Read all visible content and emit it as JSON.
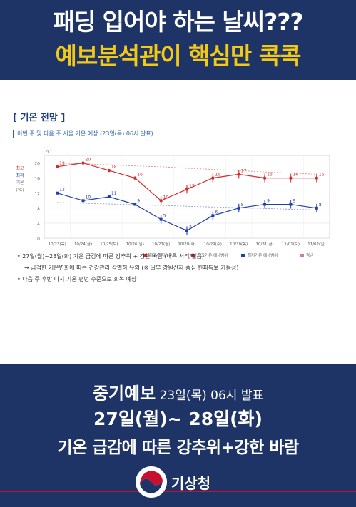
{
  "header": {
    "line1": "패딩 입어야 하는 날씨???",
    "line2": "예보분석관이 핵심만 콕콕"
  },
  "card": {
    "section_title": "[ 기온 전망 ]",
    "subtitle": "이번 주 및 다음 주 서울 기온 예상 (23일(목) 06시 발표)",
    "notes": [
      "• 27일(월)~28일(화) 기온 급감에 따른 강추위 + 강한 바람 (내륙 서리/얼음)",
      "→ 급격한 기온변화에 따른 건강관리 각별히 유의 (※ 일부 강원산지 중심 한파특보 가능성)",
      "• 다음 주 후반 다시 기온 평년 수준으로 회복 예상"
    ]
  },
  "chart_data": {
    "type": "line",
    "unit_label": "°C",
    "left_labels": [
      "최고",
      "최저",
      "기온",
      "(℃)"
    ],
    "yticks": [
      0,
      4,
      8,
      12,
      16,
      20
    ],
    "ylim": [
      0,
      22
    ],
    "categories": [
      "10/23(목)",
      "10/24(금)",
      "10/25(토)",
      "10/26(일)",
      "10/27(월)",
      "10/28(화)",
      "10/29(수)",
      "10/30(목)",
      "10/31(금)",
      "11/01(토)",
      "11/02(일)"
    ],
    "series": [
      {
        "name": "최고",
        "color": "#d42b2b",
        "values": [
          19,
          20,
          18,
          16,
          10,
          13,
          16,
          17,
          16,
          16,
          16
        ]
      },
      {
        "name": "최저",
        "color": "#1f3fae",
        "values": [
          12,
          10,
          11,
          9,
          5,
          2,
          6,
          8,
          9,
          9,
          8
        ]
      }
    ],
    "normal_high": [
      20,
      19.8,
      19.5,
      19.2,
      19,
      18.6,
      18.3,
      18,
      17.6,
      17.3,
      17
    ],
    "normal_low": [
      9.5,
      9.3,
      9.1,
      8.9,
      8.7,
      8.5,
      8.3,
      8.1,
      7.9,
      7.7,
      7.5
    ],
    "legend": [
      "최고/최저기온",
      "최고기온 예상범위",
      "최저기온 예상범위",
      "평년"
    ]
  },
  "footer": {
    "line1_main": "중기예보",
    "line1_small": " 23일(목) 06시 발표",
    "line2": "27일(월)~ 28일(화)",
    "line3": "기온 급감에 따른 강추위+강한 바람",
    "org": "기상청"
  }
}
